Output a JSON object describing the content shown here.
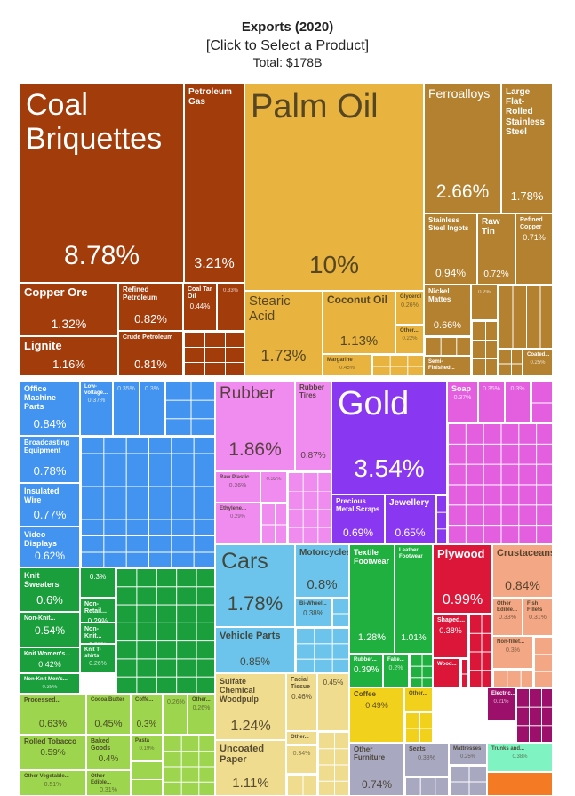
{
  "chart_data": {
    "type": "treemap",
    "title": "Exports (2020)",
    "subtitle": "[Click to Select a Product]",
    "total_label": "Total: $178B",
    "categories": [
      "Coal Briquettes",
      "Petroleum Gas",
      "Copper Ore",
      "Refined Petroleum",
      "Coal Tar Oil",
      null,
      "Lignite",
      "Crude Petroleum",
      "Palm Oil",
      "Stearic Acid",
      "Coconut Oil",
      "Glycerol",
      "Other...",
      "Margarine",
      "Ferroalloys",
      "Large Flat-Rolled Stainless Steel",
      "Stainless Steel Ingots",
      "Raw Tin",
      "Refined Copper",
      "Nickel Mattes",
      null,
      "Semi-Finished...",
      "Coated...",
      "Office Machine Parts",
      "Low-voltage...",
      null,
      null,
      "Broadcasting Equipment",
      "Insulated Wire",
      "Video Displays",
      "Rubber",
      "Rubber Tires",
      "Raw Plastic...",
      null,
      "Ethylene...",
      "Gold",
      "Precious Metal Scraps",
      "Jewellery",
      "Soap",
      null,
      null,
      "Cars",
      "Motorcycles",
      "Bi-Wheel...",
      "Vehicle Parts",
      "Textile Footwear",
      "Leather Footwear",
      "Rubber...",
      "Fake...",
      "Plywood",
      "Shaped...",
      "Wood...",
      "Crustaceans",
      "Other Edible...",
      "Fish Fillets",
      "Non-fillet...",
      "Knit Sweaters",
      null,
      "Non-Retail...",
      "Non-Knit...",
      "Non-Knit...",
      "Knit Women's...",
      "Knit T-shirts",
      "Non-Knit Men's...",
      "Processed...",
      "Cocoa Butter",
      "Coffe...",
      null,
      "Other...",
      "Rolled Tobacco",
      "Baked Goods",
      "Pasta",
      "Other Vegetable...",
      "Other Edible...",
      "Sulfate Chemical Woodpulp",
      "Facial Tissue",
      null,
      "Other...",
      "Uncoated Paper",
      null,
      "Coffee",
      "Other...",
      "Other Furniture",
      "Seats",
      "Mattresses",
      "Electric...",
      "Trunks and...",
      null
    ],
    "values": [
      8.78,
      3.21,
      1.32,
      0.82,
      0.44,
      0.33,
      1.16,
      0.81,
      10,
      1.73,
      1.13,
      0.26,
      0.22,
      0.45,
      2.66,
      1.78,
      0.94,
      0.72,
      0.71,
      0.66,
      0.2,
      0.2,
      0.25,
      0.84,
      0.37,
      0.35,
      0.3,
      0.78,
      0.77,
      0.62,
      1.86,
      0.87,
      0.36,
      0.32,
      0.29,
      3.54,
      0.69,
      0.65,
      0.37,
      0.35,
      0.3,
      1.78,
      0.8,
      0.38,
      0.85,
      1.28,
      1.01,
      0.39,
      0.2,
      0.99,
      0.38,
      0.2,
      0.84,
      0.33,
      0.31,
      0.3,
      0.6,
      0.3,
      0.29,
      0.54,
      0.27,
      0.42,
      0.26,
      0.38,
      0.63,
      0.45,
      0.3,
      0.26,
      0.26,
      0.59,
      0.4,
      0.19,
      0.51,
      0.31,
      1.24,
      0.46,
      0.45,
      0.2,
      1.11,
      0.34,
      0.49,
      0.2,
      0.74,
      0.38,
      0.25,
      0.21,
      0.38,
      0.2
    ],
    "value_labels": [
      "8.78%",
      "3.21%",
      "1.32%",
      "0.82%",
      "0.44%",
      "0.33%",
      "1.16%",
      "0.81%",
      "10%",
      "1.73%",
      "1.13%",
      "0.26%",
      "0.22%",
      "0.45%",
      "2.66%",
      "1.78%",
      "0.94%",
      "0.72%",
      "0.71%",
      "0.66%",
      "0.2%",
      null,
      "0.25%",
      "0.84%",
      "0.37%",
      "0.35%",
      "0.3%",
      "0.78%",
      "0.77%",
      "0.62%",
      "1.86%",
      "0.87%",
      "0.36%",
      "0.32%",
      "0.29%",
      "3.54%",
      "0.69%",
      "0.65%",
      "0.37%",
      "0.35%",
      "0.3%",
      "1.78%",
      "0.8%",
      "0.38%",
      "0.85%",
      "1.28%",
      "1.01%",
      "0.39%",
      "0.2%",
      "0.99%",
      "0.38%",
      null,
      "0.84%",
      "0.33%",
      "0.31%",
      "0.3%",
      "0.6%",
      "0.3%",
      "0.29%",
      "0.54%",
      "0.27%",
      "0.42%",
      "0.26%",
      "0.38%",
      "0.63%",
      "0.45%",
      "0.3%",
      "0.26%",
      "0.26%",
      "0.59%",
      "0.4%",
      "0.19%",
      "0.51%",
      "0.31%",
      "1.24%",
      "0.46%",
      "0.45%",
      null,
      "1.11%",
      "0.34%",
      "0.49%",
      null,
      "0.74%",
      "0.38%",
      "0.25%",
      "0.21%",
      "0.38%",
      null
    ],
    "colors": [
      "#a33c0b",
      "#a33c0b",
      "#a33c0b",
      "#a33c0b",
      "#a33c0b",
      "#a33c0b",
      "#a33c0b",
      "#a33c0b",
      "#e8b43f",
      "#e8b43f",
      "#e8b43f",
      "#e8b43f",
      "#e8b43f",
      "#e8b43f",
      "#b3812f",
      "#b3812f",
      "#b3812f",
      "#b3812f",
      "#b3812f",
      "#b3812f",
      "#b3812f",
      "#b3812f",
      "#b3812f",
      "#4394f0",
      "#4394f0",
      "#4394f0",
      "#4394f0",
      "#4394f0",
      "#4394f0",
      "#4394f0",
      "#f08bf0",
      "#f08bf0",
      "#f08bf0",
      "#f08bf0",
      "#f08bf0",
      "#8a37f2",
      "#8a37f2",
      "#8a37f2",
      "#e45fe0",
      "#e45fe0",
      "#e45fe0",
      "#6cc4ec",
      "#6cc4ec",
      "#6cc4ec",
      "#6cc4ec",
      "#20b03f",
      "#20b03f",
      "#20b03f",
      "#20b03f",
      "#dc1638",
      "#dc1638",
      "#dc1638",
      "#f3a784",
      "#f3a784",
      "#f3a784",
      "#f3a784",
      "#1a9f3c",
      "#1a9f3c",
      "#1a9f3c",
      "#1a9f3c",
      "#1a9f3c",
      "#1a9f3c",
      "#1a9f3c",
      "#1a9f3c",
      "#9dd54e",
      "#9dd54e",
      "#9dd54e",
      "#9dd54e",
      "#9dd54e",
      "#9dd54e",
      "#9dd54e",
      "#9dd54e",
      "#9dd54e",
      "#9dd54e",
      "#f0dc8f",
      "#f0dc8f",
      "#f0dc8f",
      "#f0dc8f",
      "#f0dc8f",
      "#f0dc8f",
      "#f2d11c",
      "#f2d11c",
      "#a8a9c0",
      "#a8a9c0",
      "#a8a9c0",
      "#9c0f6b",
      "#7ff4c2",
      "#f47a24"
    ]
  }
}
